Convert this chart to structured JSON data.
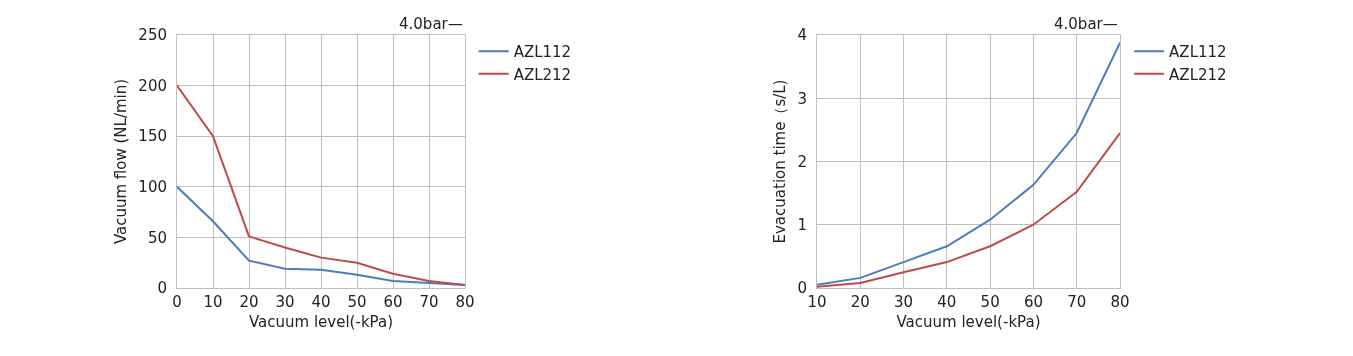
{
  "chart_data": [
    {
      "type": "line",
      "xlabel": "Vacuum level(-kPa)",
      "ylabel": "Vacuum flow (NL/min)",
      "annotations": [
        "4.0bar—"
      ],
      "x": [
        0,
        10,
        20,
        30,
        40,
        50,
        60,
        70,
        80
      ],
      "series": [
        {
          "name": "AZL112",
          "color": "#4a7ebb",
          "values": [
            100,
            66,
            27,
            19,
            18,
            13,
            7,
            5,
            3
          ]
        },
        {
          "name": "AZL212",
          "color": "#be4b48",
          "values": [
            200,
            150,
            51,
            40,
            30,
            25,
            14,
            7,
            3
          ]
        }
      ],
      "xlim": [
        0,
        80
      ],
      "xticks": [
        0,
        10,
        20,
        30,
        40,
        50,
        60,
        70,
        80
      ],
      "ylim": [
        0,
        250
      ],
      "yticks": [
        0,
        50,
        100,
        150,
        200,
        250
      ],
      "grid": true,
      "legend": "top right",
      "marker": "none",
      "line_style": "solid"
    },
    {
      "type": "line",
      "xlabel": "Vacuum level(-kPa)",
      "ylabel": "Evacuation time（s/L)",
      "annotations": [
        "4.0bar—"
      ],
      "x": [
        10,
        20,
        30,
        40,
        50,
        60,
        70,
        80
      ],
      "series": [
        {
          "name": "AZL112",
          "color": "#4a7ebb",
          "values": [
            0.05,
            0.16,
            0.41,
            0.66,
            1.08,
            1.63,
            2.45,
            3.88
          ]
        },
        {
          "name": "AZL212",
          "color": "#be4b48",
          "values": [
            0.02,
            0.08,
            0.25,
            0.41,
            0.66,
            1.0,
            1.52,
            2.45
          ]
        }
      ],
      "xlim": [
        10,
        80
      ],
      "xticks": [
        10,
        20,
        30,
        40,
        50,
        60,
        70,
        80
      ],
      "ylim": [
        0,
        4
      ],
      "yticks": [
        0,
        1,
        2,
        3,
        4
      ],
      "grid": true,
      "legend": "top right",
      "marker": "none",
      "line_style": "solid"
    }
  ]
}
